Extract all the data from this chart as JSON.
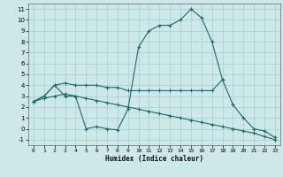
{
  "xlabel": "Humidex (Indice chaleur)",
  "xlim": [
    -0.5,
    23.5
  ],
  "ylim": [
    -1.5,
    11.5
  ],
  "yticks": [
    -1,
    0,
    1,
    2,
    3,
    4,
    5,
    6,
    7,
    8,
    9,
    10,
    11
  ],
  "xticks": [
    0,
    1,
    2,
    3,
    4,
    5,
    6,
    7,
    8,
    9,
    10,
    11,
    12,
    13,
    14,
    15,
    16,
    17,
    18,
    19,
    20,
    21,
    22,
    23
  ],
  "bg_color": "#cce8e8",
  "grid_color": "#b0d0d0",
  "line_color": "#1a6b6b",
  "line1_x": [
    0,
    1,
    2,
    3,
    4,
    5,
    6,
    7,
    8,
    9,
    10,
    11,
    12,
    13,
    14,
    15,
    16,
    17,
    18,
    19,
    20,
    21,
    22,
    23
  ],
  "line1_y": [
    2.5,
    3.0,
    4.0,
    3.0,
    3.0,
    0.0,
    0.2,
    0.0,
    -0.1,
    1.8,
    7.5,
    9.0,
    9.5,
    9.5,
    10.0,
    11.0,
    10.2,
    8.0,
    4.5,
    2.2,
    1.0,
    0.0,
    -0.2,
    -0.8
  ],
  "line2_x": [
    0,
    1,
    2,
    3,
    4,
    5,
    6,
    7,
    8,
    9,
    10,
    11,
    12,
    13,
    14,
    15,
    16,
    17,
    18
  ],
  "line2_y": [
    2.5,
    3.0,
    4.0,
    4.2,
    4.0,
    4.0,
    4.0,
    3.8,
    3.8,
    3.5,
    3.5,
    3.5,
    3.5,
    3.5,
    3.5,
    3.5,
    3.5,
    3.5,
    4.5
  ],
  "line3_x": [
    0,
    1,
    2,
    3,
    4,
    5,
    6,
    7,
    8,
    9,
    10,
    11,
    12,
    13,
    14,
    15,
    16,
    17,
    18,
    19,
    20,
    21,
    22,
    23
  ],
  "line3_y": [
    2.5,
    2.8,
    3.0,
    3.2,
    3.0,
    2.8,
    2.6,
    2.4,
    2.2,
    2.0,
    1.8,
    1.6,
    1.4,
    1.2,
    1.0,
    0.8,
    0.6,
    0.4,
    0.2,
    0.0,
    -0.2,
    -0.4,
    -0.7,
    -1.0
  ]
}
